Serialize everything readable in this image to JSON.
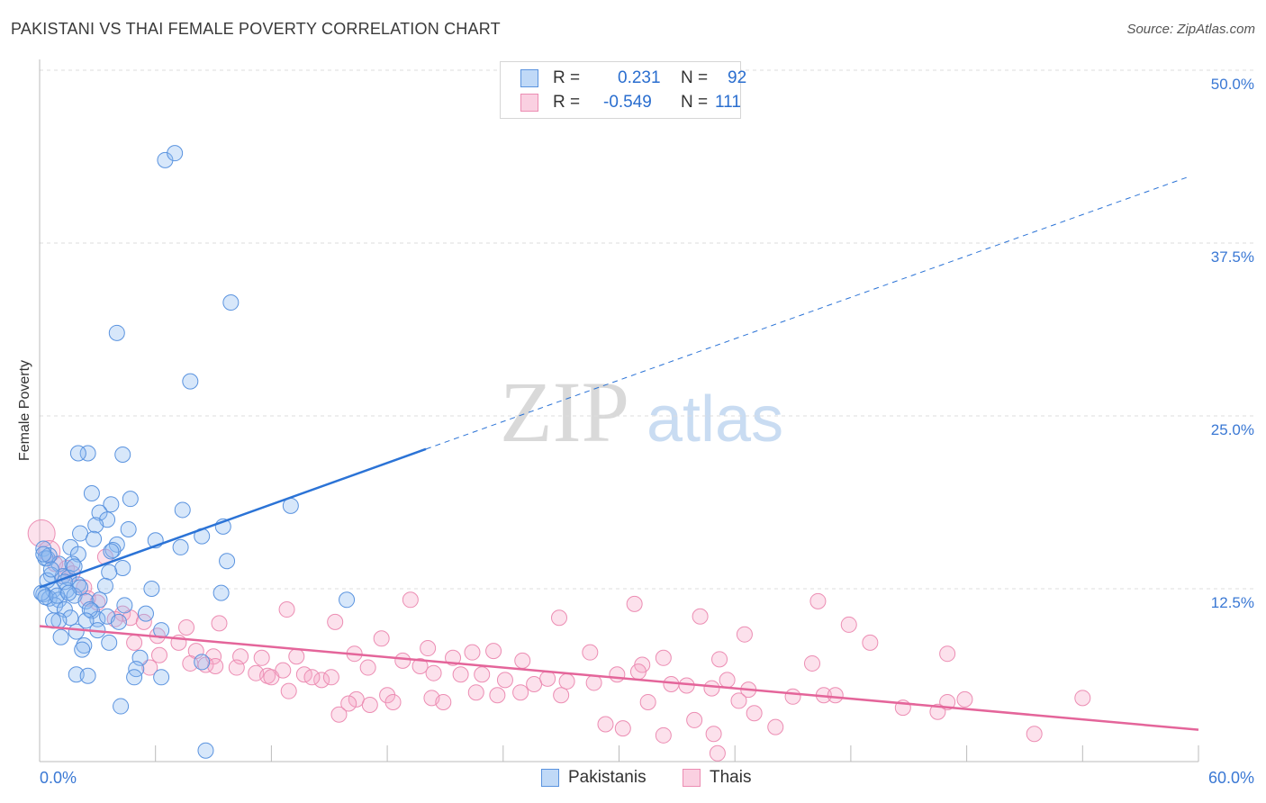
{
  "header": {
    "title": "PAKISTANI VS THAI FEMALE POVERTY CORRELATION CHART",
    "source": "Source: ZipAtlas.com"
  },
  "watermark": {
    "zip": "ZIP",
    "atlas": "atlas"
  },
  "colors": {
    "blue": "#2b73d6",
    "blue_fill": "rgba(141,185,240,0.35)",
    "blue_stroke": "#5a93df",
    "pink": "#e4659a",
    "pink_fill": "rgba(246,170,200,0.35)",
    "pink_stroke": "#ec8db3",
    "axis_text": "#3a78d4",
    "grid": "#dddddd"
  },
  "legend": {
    "rows": [
      {
        "r_label": "R =",
        "r_value": "0.231",
        "n_label": "N =",
        "n_value": "92",
        "color": "blue"
      },
      {
        "r_label": "R =",
        "r_value": "-0.549",
        "n_label": "N =",
        "n_value": "111",
        "color": "pink"
      }
    ]
  },
  "bottom_legend": [
    {
      "label": "Pakistanis",
      "color": "blue"
    },
    {
      "label": "Thais",
      "color": "pink"
    }
  ],
  "chart_data": {
    "type": "scatter",
    "title": "PAKISTANI VS THAI FEMALE POVERTY CORRELATION CHART",
    "xlabel": "",
    "ylabel": "Female Poverty",
    "xlim": [
      0,
      60
    ],
    "ylim": [
      0,
      50
    ],
    "x_tick_labels": [
      "0.0%",
      "60.0%"
    ],
    "y_ticks": [
      12.5,
      25.0,
      37.5,
      50.0
    ],
    "y_tick_labels": [
      "12.5%",
      "25.0%",
      "37.5%",
      "50.0%"
    ],
    "grid": true,
    "series": [
      {
        "name": "Pakistanis",
        "color": "blue",
        "trend": {
          "x0": 0,
          "y0": 12.6,
          "x1": 20,
          "y1": 22.6,
          "dashed_to_x": 59.5,
          "dashed_to_y": 42.3
        },
        "points": [
          [
            6.5,
            43.5
          ],
          [
            7.0,
            44.0
          ],
          [
            9.9,
            33.2
          ],
          [
            4.0,
            31.0
          ],
          [
            7.8,
            27.5
          ],
          [
            2.5,
            22.3
          ],
          [
            4.3,
            22.2
          ],
          [
            2.0,
            22.3
          ],
          [
            13.0,
            18.5
          ],
          [
            2.7,
            19.4
          ],
          [
            3.7,
            18.6
          ],
          [
            4.7,
            19.0
          ],
          [
            7.4,
            18.2
          ],
          [
            3.1,
            18.0
          ],
          [
            3.5,
            17.5
          ],
          [
            2.9,
            17.1
          ],
          [
            9.5,
            17.0
          ],
          [
            4.6,
            16.8
          ],
          [
            2.1,
            16.5
          ],
          [
            2.8,
            16.1
          ],
          [
            6.0,
            16.0
          ],
          [
            8.4,
            16.3
          ],
          [
            4.0,
            15.7
          ],
          [
            3.8,
            15.3
          ],
          [
            1.6,
            15.5
          ],
          [
            2.0,
            15.0
          ],
          [
            7.3,
            15.5
          ],
          [
            0.2,
            15.4
          ],
          [
            0.4,
            14.7
          ],
          [
            1.0,
            14.3
          ],
          [
            1.7,
            14.3
          ],
          [
            4.3,
            14.0
          ],
          [
            3.6,
            13.7
          ],
          [
            9.7,
            14.5
          ],
          [
            0.3,
            14.7
          ],
          [
            1.2,
            13.4
          ],
          [
            1.5,
            13.3
          ],
          [
            0.6,
            13.5
          ],
          [
            2.0,
            12.8
          ],
          [
            1.4,
            12.4
          ],
          [
            0.7,
            12.4
          ],
          [
            3.4,
            12.7
          ],
          [
            5.8,
            12.5
          ],
          [
            9.4,
            12.2
          ],
          [
            0.2,
            12.1
          ],
          [
            0.5,
            11.8
          ],
          [
            1.0,
            11.7
          ],
          [
            1.8,
            12.0
          ],
          [
            2.4,
            11.6
          ],
          [
            3.1,
            11.7
          ],
          [
            15.9,
            11.7
          ],
          [
            0.8,
            11.3
          ],
          [
            1.3,
            11.0
          ],
          [
            2.7,
            10.9
          ],
          [
            4.4,
            11.3
          ],
          [
            3.0,
            10.3
          ],
          [
            1.6,
            10.4
          ],
          [
            1.0,
            10.2
          ],
          [
            0.7,
            10.2
          ],
          [
            3.5,
            10.5
          ],
          [
            4.1,
            10.1
          ],
          [
            6.3,
            9.5
          ],
          [
            3.0,
            9.5
          ],
          [
            1.9,
            9.4
          ],
          [
            1.1,
            9.0
          ],
          [
            3.6,
            8.6
          ],
          [
            2.3,
            8.4
          ],
          [
            2.2,
            8.1
          ],
          [
            5.2,
            7.5
          ],
          [
            8.4,
            7.2
          ],
          [
            5.0,
            6.7
          ],
          [
            4.9,
            6.1
          ],
          [
            6.3,
            6.1
          ],
          [
            1.9,
            6.3
          ],
          [
            2.5,
            6.2
          ],
          [
            4.2,
            4.0
          ],
          [
            8.6,
            0.8
          ],
          [
            0.1,
            12.2
          ],
          [
            0.3,
            11.9
          ],
          [
            0.5,
            14.9
          ],
          [
            2.1,
            12.6
          ],
          [
            1.8,
            14.1
          ],
          [
            3.7,
            15.2
          ],
          [
            1.3,
            13.0
          ],
          [
            0.9,
            12.0
          ],
          [
            2.6,
            11.0
          ],
          [
            0.4,
            13.1
          ],
          [
            1.5,
            12.2
          ],
          [
            5.5,
            10.7
          ],
          [
            2.4,
            10.2
          ],
          [
            0.2,
            15.0
          ],
          [
            0.6,
            13.9
          ]
        ]
      },
      {
        "name": "Thais",
        "color": "pink",
        "trend": {
          "x0": 0,
          "y0": 9.8,
          "x1": 60,
          "y1": 2.3
        },
        "points": [
          [
            0.1,
            16.5
          ],
          [
            0.5,
            15.2
          ],
          [
            0.8,
            14.3
          ],
          [
            1.4,
            14.0
          ],
          [
            1.7,
            13.6
          ],
          [
            1.2,
            13.4
          ],
          [
            2.3,
            12.6
          ],
          [
            2.5,
            11.8
          ],
          [
            3.0,
            11.5
          ],
          [
            3.4,
            14.8
          ],
          [
            4.3,
            10.7
          ],
          [
            3.9,
            10.3
          ],
          [
            4.7,
            10.4
          ],
          [
            5.4,
            10.1
          ],
          [
            7.6,
            9.7
          ],
          [
            9.3,
            10.0
          ],
          [
            12.8,
            11.0
          ],
          [
            15.3,
            10.1
          ],
          [
            19.2,
            11.7
          ],
          [
            26.9,
            10.4
          ],
          [
            30.8,
            11.4
          ],
          [
            34.2,
            10.5
          ],
          [
            40.3,
            11.6
          ],
          [
            41.9,
            9.9
          ],
          [
            36.5,
            9.2
          ],
          [
            43.0,
            8.6
          ],
          [
            47.0,
            7.8
          ],
          [
            22.4,
            7.9
          ],
          [
            23.5,
            8.0
          ],
          [
            25.0,
            7.3
          ],
          [
            28.5,
            7.9
          ],
          [
            31.2,
            7.0
          ],
          [
            32.3,
            7.5
          ],
          [
            35.2,
            7.4
          ],
          [
            40.0,
            7.1
          ],
          [
            4.9,
            8.6
          ],
          [
            6.2,
            7.7
          ],
          [
            6.1,
            9.1
          ],
          [
            7.2,
            8.6
          ],
          [
            8.1,
            8.0
          ],
          [
            9.0,
            7.6
          ],
          [
            10.4,
            7.6
          ],
          [
            11.5,
            7.5
          ],
          [
            13.3,
            7.6
          ],
          [
            16.3,
            7.8
          ],
          [
            17.7,
            8.9
          ],
          [
            18.8,
            7.3
          ],
          [
            20.1,
            8.2
          ],
          [
            21.4,
            7.5
          ],
          [
            5.7,
            6.8
          ],
          [
            7.8,
            7.1
          ],
          [
            8.6,
            7.0
          ],
          [
            9.1,
            6.9
          ],
          [
            10.2,
            6.8
          ],
          [
            11.2,
            6.4
          ],
          [
            11.8,
            6.2
          ],
          [
            12.0,
            6.1
          ],
          [
            12.6,
            6.6
          ],
          [
            13.7,
            6.3
          ],
          [
            14.6,
            5.9
          ],
          [
            15.1,
            6.1
          ],
          [
            17.0,
            6.8
          ],
          [
            19.7,
            6.9
          ],
          [
            20.4,
            6.4
          ],
          [
            21.8,
            6.3
          ],
          [
            22.9,
            6.3
          ],
          [
            24.1,
            5.9
          ],
          [
            25.6,
            5.6
          ],
          [
            26.3,
            6.0
          ],
          [
            27.3,
            5.8
          ],
          [
            28.7,
            5.7
          ],
          [
            29.9,
            6.3
          ],
          [
            31.0,
            6.5
          ],
          [
            32.7,
            5.6
          ],
          [
            33.5,
            5.5
          ],
          [
            34.8,
            5.3
          ],
          [
            35.6,
            5.9
          ],
          [
            36.7,
            5.2
          ],
          [
            12.9,
            5.1
          ],
          [
            14.1,
            6.1
          ],
          [
            16.4,
            4.5
          ],
          [
            18.0,
            4.8
          ],
          [
            20.3,
            4.6
          ],
          [
            22.6,
            5.0
          ],
          [
            23.7,
            4.8
          ],
          [
            24.9,
            5.0
          ],
          [
            27.0,
            4.8
          ],
          [
            15.5,
            3.4
          ],
          [
            16.0,
            4.2
          ],
          [
            17.1,
            4.1
          ],
          [
            18.3,
            4.3
          ],
          [
            20.9,
            4.3
          ],
          [
            29.3,
            2.7
          ],
          [
            30.2,
            2.4
          ],
          [
            31.5,
            4.3
          ],
          [
            32.3,
            1.9
          ],
          [
            33.9,
            3.0
          ],
          [
            34.9,
            2.0
          ],
          [
            35.1,
            0.6
          ],
          [
            36.2,
            4.4
          ],
          [
            37.0,
            3.5
          ],
          [
            38.1,
            2.5
          ],
          [
            39.0,
            4.7
          ],
          [
            40.6,
            4.8
          ],
          [
            41.2,
            4.8
          ],
          [
            44.7,
            3.9
          ],
          [
            47.0,
            4.3
          ],
          [
            47.9,
            4.5
          ],
          [
            46.5,
            3.6
          ],
          [
            51.5,
            2.0
          ],
          [
            54.0,
            4.6
          ]
        ]
      }
    ]
  }
}
